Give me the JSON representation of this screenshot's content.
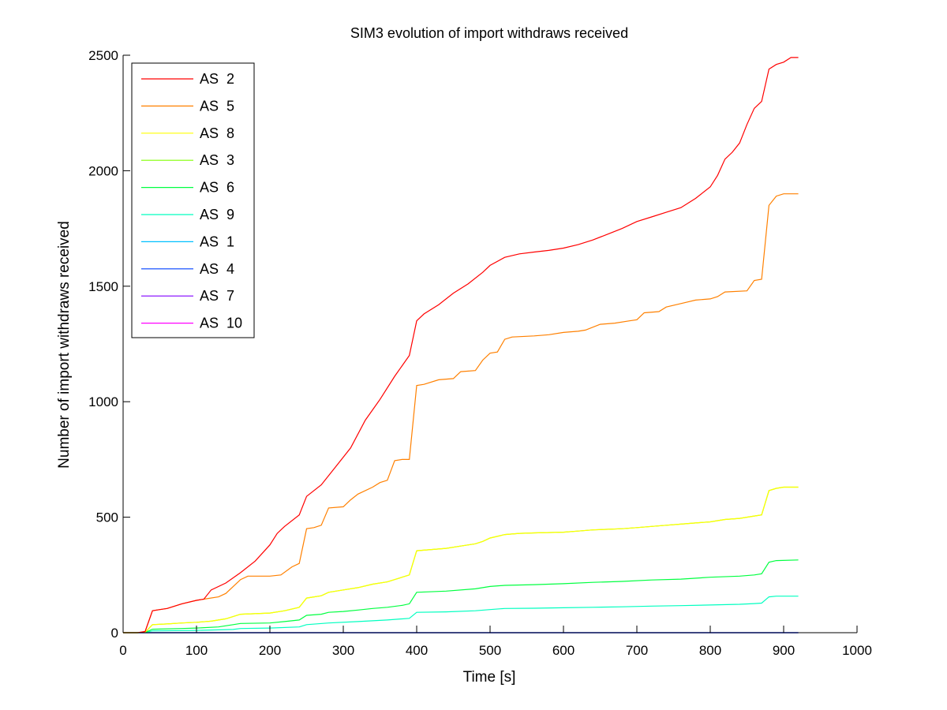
{
  "chart_data": {
    "type": "line",
    "title": "SIM3 evolution of import withdraws received",
    "xlabel": "Time [s]",
    "ylabel": "Number of import withdraws received",
    "xlim": [
      0,
      1000
    ],
    "ylim": [
      0,
      2500
    ],
    "xticks": [
      0,
      100,
      200,
      300,
      400,
      500,
      600,
      700,
      800,
      900,
      1000
    ],
    "yticks": [
      0,
      500,
      1000,
      1500,
      2000,
      2500
    ],
    "grid": false,
    "legend_position": "top-left",
    "series": [
      {
        "name": "AS  2",
        "color": "#ff0000",
        "x": [
          0,
          20,
          30,
          40,
          50,
          60,
          80,
          100,
          110,
          120,
          140,
          160,
          180,
          200,
          210,
          220,
          240,
          250,
          270,
          290,
          310,
          330,
          350,
          370,
          390,
          400,
          410,
          430,
          450,
          470,
          490,
          500,
          520,
          540,
          560,
          580,
          600,
          620,
          640,
          660,
          680,
          700,
          720,
          740,
          760,
          780,
          800,
          810,
          820,
          830,
          840,
          850,
          860,
          870,
          880,
          890,
          900,
          910,
          920
        ],
        "y": [
          0,
          0,
          5,
          95,
          100,
          105,
          125,
          140,
          145,
          185,
          215,
          260,
          310,
          380,
          430,
          460,
          510,
          590,
          640,
          720,
          800,
          920,
          1010,
          1110,
          1200,
          1350,
          1380,
          1420,
          1470,
          1510,
          1560,
          1590,
          1625,
          1640,
          1648,
          1655,
          1665,
          1680,
          1700,
          1725,
          1750,
          1780,
          1800,
          1820,
          1840,
          1880,
          1930,
          1980,
          2050,
          2080,
          2120,
          2200,
          2270,
          2300,
          2440,
          2460,
          2470,
          2490,
          2490
        ]
      },
      {
        "name": "AS  5",
        "color": "#ff8000",
        "x": [
          0,
          20,
          30,
          40,
          50,
          60,
          80,
          100,
          110,
          130,
          140,
          160,
          170,
          200,
          215,
          230,
          240,
          250,
          260,
          270,
          280,
          300,
          310,
          320,
          340,
          350,
          360,
          370,
          380,
          390,
          400,
          410,
          430,
          450,
          460,
          480,
          490,
          500,
          510,
          520,
          530,
          560,
          580,
          600,
          620,
          630,
          650,
          670,
          690,
          700,
          710,
          730,
          740,
          760,
          780,
          800,
          810,
          820,
          850,
          860,
          870,
          880,
          890,
          900,
          920
        ],
        "y": [
          0,
          0,
          5,
          95,
          100,
          105,
          125,
          140,
          145,
          155,
          170,
          230,
          245,
          245,
          250,
          285,
          300,
          450,
          455,
          465,
          540,
          545,
          575,
          600,
          630,
          650,
          660,
          745,
          750,
          750,
          1070,
          1075,
          1095,
          1100,
          1130,
          1135,
          1180,
          1210,
          1215,
          1270,
          1280,
          1285,
          1290,
          1300,
          1305,
          1310,
          1335,
          1340,
          1350,
          1355,
          1385,
          1390,
          1410,
          1425,
          1440,
          1445,
          1455,
          1475,
          1480,
          1525,
          1530,
          1850,
          1890,
          1900,
          1900
        ]
      },
      {
        "name": "AS  8",
        "color": "#ffff00",
        "x": [
          0,
          20,
          30,
          40,
          60,
          80,
          100,
          120,
          140,
          160,
          200,
          220,
          240,
          250,
          270,
          280,
          300,
          320,
          340,
          360,
          380,
          390,
          400,
          420,
          440,
          460,
          480,
          490,
          500,
          520,
          540,
          560,
          600,
          620,
          640,
          680,
          700,
          720,
          740,
          760,
          780,
          800,
          810,
          820,
          840,
          850,
          860,
          870,
          880,
          890,
          900,
          920
        ],
        "y": [
          0,
          0,
          2,
          35,
          38,
          42,
          45,
          50,
          60,
          80,
          85,
          95,
          110,
          150,
          160,
          175,
          185,
          195,
          210,
          220,
          240,
          250,
          355,
          360,
          365,
          375,
          385,
          395,
          410,
          425,
          430,
          432,
          435,
          440,
          445,
          450,
          455,
          460,
          465,
          470,
          475,
          480,
          485,
          490,
          495,
          500,
          505,
          510,
          615,
          625,
          630,
          630
        ]
      },
      {
        "name": "AS  3",
        "color": "#80ff00",
        "x": [
          0,
          20,
          30,
          40,
          60,
          80,
          100,
          120,
          140,
          160,
          200,
          220,
          240,
          250,
          270,
          280,
          300,
          320,
          340,
          360,
          380,
          390,
          400,
          420,
          440,
          460,
          480,
          490,
          500,
          520,
          540,
          560,
          600,
          620,
          640,
          680,
          700,
          720,
          740,
          760,
          780,
          800,
          810,
          820,
          840,
          850,
          860,
          870,
          880,
          890,
          900,
          920
        ],
        "y": [
          0,
          0,
          2,
          35,
          38,
          42,
          45,
          50,
          60,
          80,
          85,
          95,
          110,
          150,
          160,
          175,
          185,
          195,
          210,
          220,
          240,
          250,
          355,
          360,
          365,
          375,
          385,
          395,
          410,
          425,
          430,
          432,
          435,
          440,
          445,
          450,
          455,
          460,
          465,
          470,
          475,
          480,
          485,
          490,
          495,
          500,
          505,
          510,
          615,
          625,
          630,
          630
        ]
      },
      {
        "name": "AS  6",
        "color": "#00ff40",
        "x": [
          0,
          20,
          30,
          40,
          80,
          100,
          130,
          150,
          160,
          200,
          220,
          240,
          250,
          270,
          280,
          300,
          320,
          340,
          360,
          380,
          390,
          400,
          440,
          480,
          500,
          520,
          560,
          600,
          640,
          680,
          720,
          760,
          800,
          840,
          860,
          870,
          880,
          890,
          920
        ],
        "y": [
          0,
          0,
          1,
          15,
          18,
          20,
          25,
          35,
          40,
          42,
          48,
          55,
          75,
          80,
          88,
          92,
          98,
          105,
          110,
          118,
          125,
          175,
          180,
          190,
          200,
          205,
          208,
          212,
          218,
          222,
          228,
          232,
          240,
          245,
          250,
          255,
          305,
          312,
          315
        ]
      },
      {
        "name": "AS  9",
        "color": "#00ffc0",
        "x": [
          0,
          20,
          30,
          40,
          100,
          150,
          160,
          200,
          240,
          250,
          280,
          320,
          360,
          390,
          400,
          440,
          480,
          500,
          520,
          560,
          600,
          640,
          680,
          720,
          760,
          800,
          840,
          860,
          870,
          880,
          890,
          920
        ],
        "y": [
          0,
          0,
          1,
          8,
          10,
          14,
          18,
          20,
          25,
          35,
          42,
          48,
          55,
          62,
          88,
          90,
          95,
          100,
          105,
          106,
          108,
          110,
          112,
          115,
          117,
          120,
          123,
          126,
          128,
          155,
          158,
          158
        ]
      },
      {
        "name": "AS  1",
        "color": "#00c0ff",
        "x": [
          0,
          920
        ],
        "y": [
          0,
          0
        ]
      },
      {
        "name": "AS  4",
        "color": "#0040ff",
        "x": [
          0,
          920
        ],
        "y": [
          0,
          0
        ]
      },
      {
        "name": "AS  7",
        "color": "#8000ff",
        "x": [
          0,
          920
        ],
        "y": [
          0,
          0
        ]
      },
      {
        "name": "AS  10",
        "color": "#ff00ff",
        "x": [
          0,
          920
        ],
        "y": [
          0,
          0
        ]
      }
    ]
  }
}
